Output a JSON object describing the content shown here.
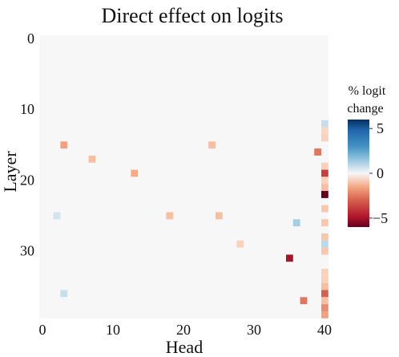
{
  "title": "Direct effect on logits",
  "chart_data": {
    "type": "heatmap",
    "title": "Direct effect on logits",
    "xlabel": "Head",
    "ylabel": "Layer",
    "x_range": [
      0,
      40
    ],
    "y_range": [
      0,
      40
    ],
    "x_ticks": [
      0,
      10,
      20,
      30,
      40
    ],
    "y_ticks": [
      0,
      10,
      20,
      30
    ],
    "y_axis_direction": "top-to-bottom",
    "grid": false,
    "colorbar": {
      "title_lines": [
        "% logit",
        "change"
      ],
      "ticks": [
        5,
        0,
        -5
      ],
      "range": [
        -6,
        6
      ],
      "colormap": "RdBu",
      "placement": "right"
    },
    "background_value": 0,
    "cells": [
      {
        "layer": 12,
        "head": 40,
        "value": 0.6
      },
      {
        "layer": 13,
        "head": 40,
        "value": -0.5
      },
      {
        "layer": 14,
        "head": 40,
        "value": -0.6
      },
      {
        "layer": 15,
        "head": 3,
        "value": -1.6
      },
      {
        "layer": 15,
        "head": 24,
        "value": -1.0
      },
      {
        "layer": 16,
        "head": 39,
        "value": -2.5
      },
      {
        "layer": 17,
        "head": 7,
        "value": -1.0
      },
      {
        "layer": 18,
        "head": 40,
        "value": -0.6
      },
      {
        "layer": 19,
        "head": 13,
        "value": -1.4
      },
      {
        "layer": 19,
        "head": 40,
        "value": -3.8
      },
      {
        "layer": 20,
        "head": 40,
        "value": -0.6
      },
      {
        "layer": 21,
        "head": 40,
        "value": -1.0
      },
      {
        "layer": 22,
        "head": 40,
        "value": -6.0
      },
      {
        "layer": 24,
        "head": 40,
        "value": -0.8
      },
      {
        "layer": 25,
        "head": 18,
        "value": -1.0
      },
      {
        "layer": 25,
        "head": 25,
        "value": -1.0
      },
      {
        "layer": 25,
        "head": 2,
        "value": 0.4
      },
      {
        "layer": 26,
        "head": 36,
        "value": 1.2
      },
      {
        "layer": 26,
        "head": 40,
        "value": -0.8
      },
      {
        "layer": 28,
        "head": 40,
        "value": -0.8
      },
      {
        "layer": 29,
        "head": 28,
        "value": -0.6
      },
      {
        "layer": 29,
        "head": 40,
        "value": 0.8
      },
      {
        "layer": 30,
        "head": 40,
        "value": -0.8
      },
      {
        "layer": 31,
        "head": 35,
        "value": -5.0
      },
      {
        "layer": 33,
        "head": 40,
        "value": -0.6
      },
      {
        "layer": 34,
        "head": 40,
        "value": -0.6
      },
      {
        "layer": 35,
        "head": 40,
        "value": -1.0
      },
      {
        "layer": 36,
        "head": 40,
        "value": -3.0
      },
      {
        "layer": 36,
        "head": 3,
        "value": 0.6
      },
      {
        "layer": 37,
        "head": 37,
        "value": -2.5
      },
      {
        "layer": 37,
        "head": 40,
        "value": -1.0
      },
      {
        "layer": 38,
        "head": 40,
        "value": -2.0
      },
      {
        "layer": 39,
        "head": 40,
        "value": -1.6
      }
    ]
  }
}
